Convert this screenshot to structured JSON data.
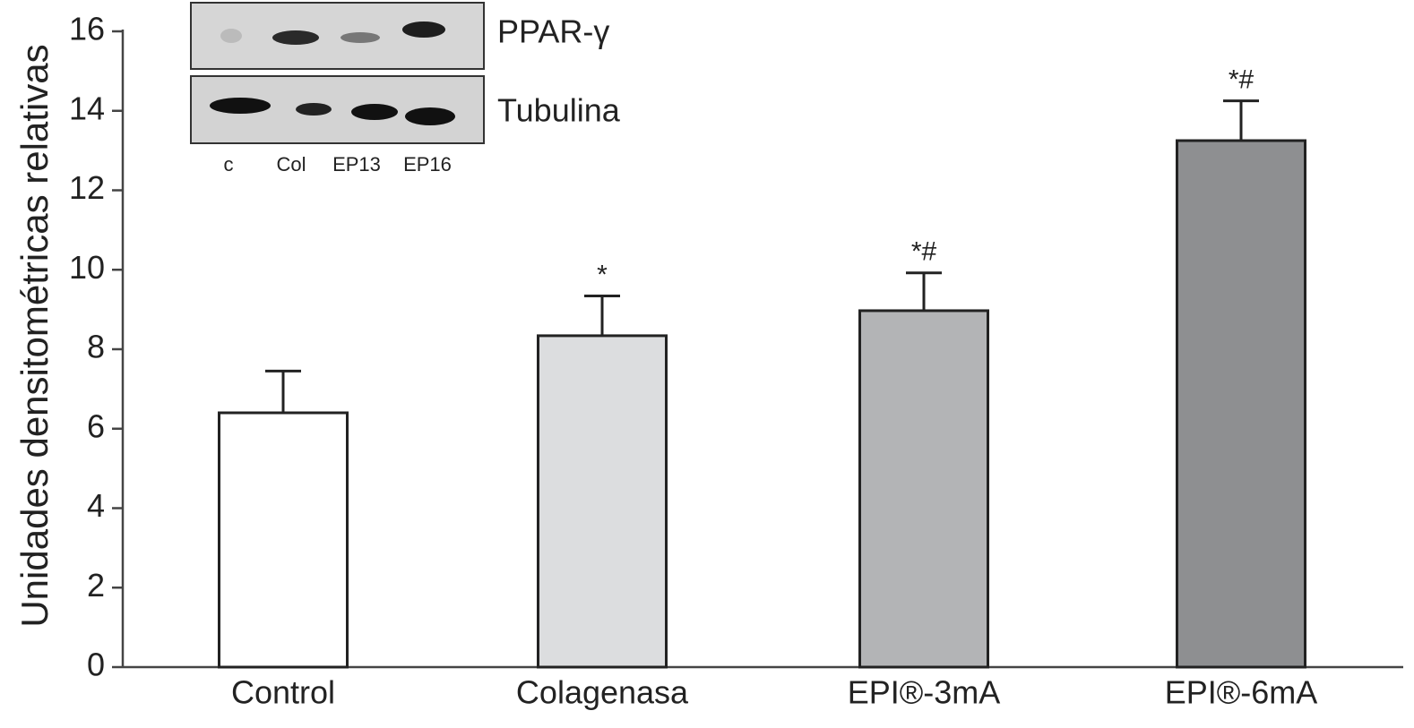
{
  "chart_data": {
    "type": "bar",
    "y_label": "Unidades densitométricas relativas",
    "categories": [
      "Control",
      "Colagenasa",
      "EPI®-3mA",
      "EPI®-6mA"
    ],
    "values": [
      6.4,
      8.34,
      8.97,
      13.25
    ],
    "errors": [
      1.05,
      1.0,
      0.95,
      1.0
    ],
    "colors": [
      "#ffffff",
      "#dcdddf",
      "#b3b4b6",
      "#8e8f91"
    ],
    "significance": [
      null,
      "*",
      "*#",
      "*#"
    ],
    "ylim": [
      0,
      16
    ],
    "yticks": [
      0,
      2,
      4,
      6,
      8,
      10,
      12,
      14,
      16
    ],
    "inset": {
      "rows": [
        "PPAR-γ",
        "Tubulina"
      ],
      "lanes": [
        "c",
        "Col",
        "EP13",
        "EP16"
      ]
    }
  }
}
